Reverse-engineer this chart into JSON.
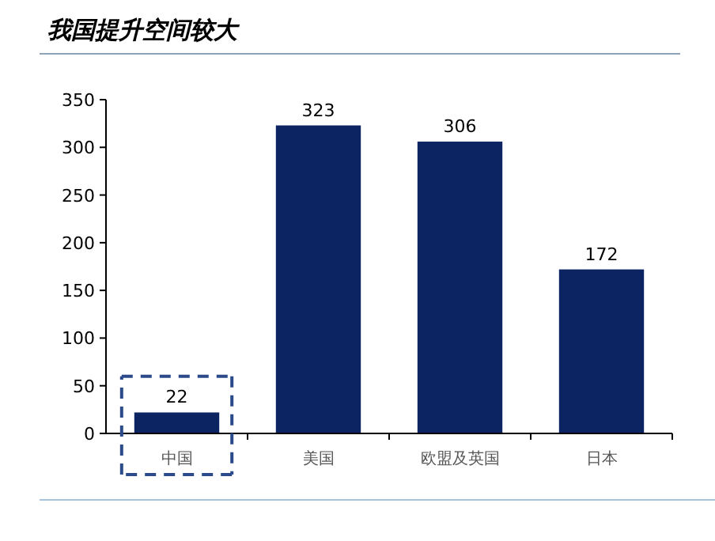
{
  "chart_data": {
    "type": "bar",
    "title": "我国提升空间较大",
    "categories": [
      "中国",
      "美国",
      "欧盟及英国",
      "日本"
    ],
    "values": [
      22,
      323,
      306,
      172
    ],
    "color": "#0d2463",
    "ylim": [
      0,
      350
    ],
    "yticks": [
      0,
      50,
      100,
      150,
      200,
      250,
      300,
      350
    ],
    "grid": false,
    "data_labels": true
  }
}
